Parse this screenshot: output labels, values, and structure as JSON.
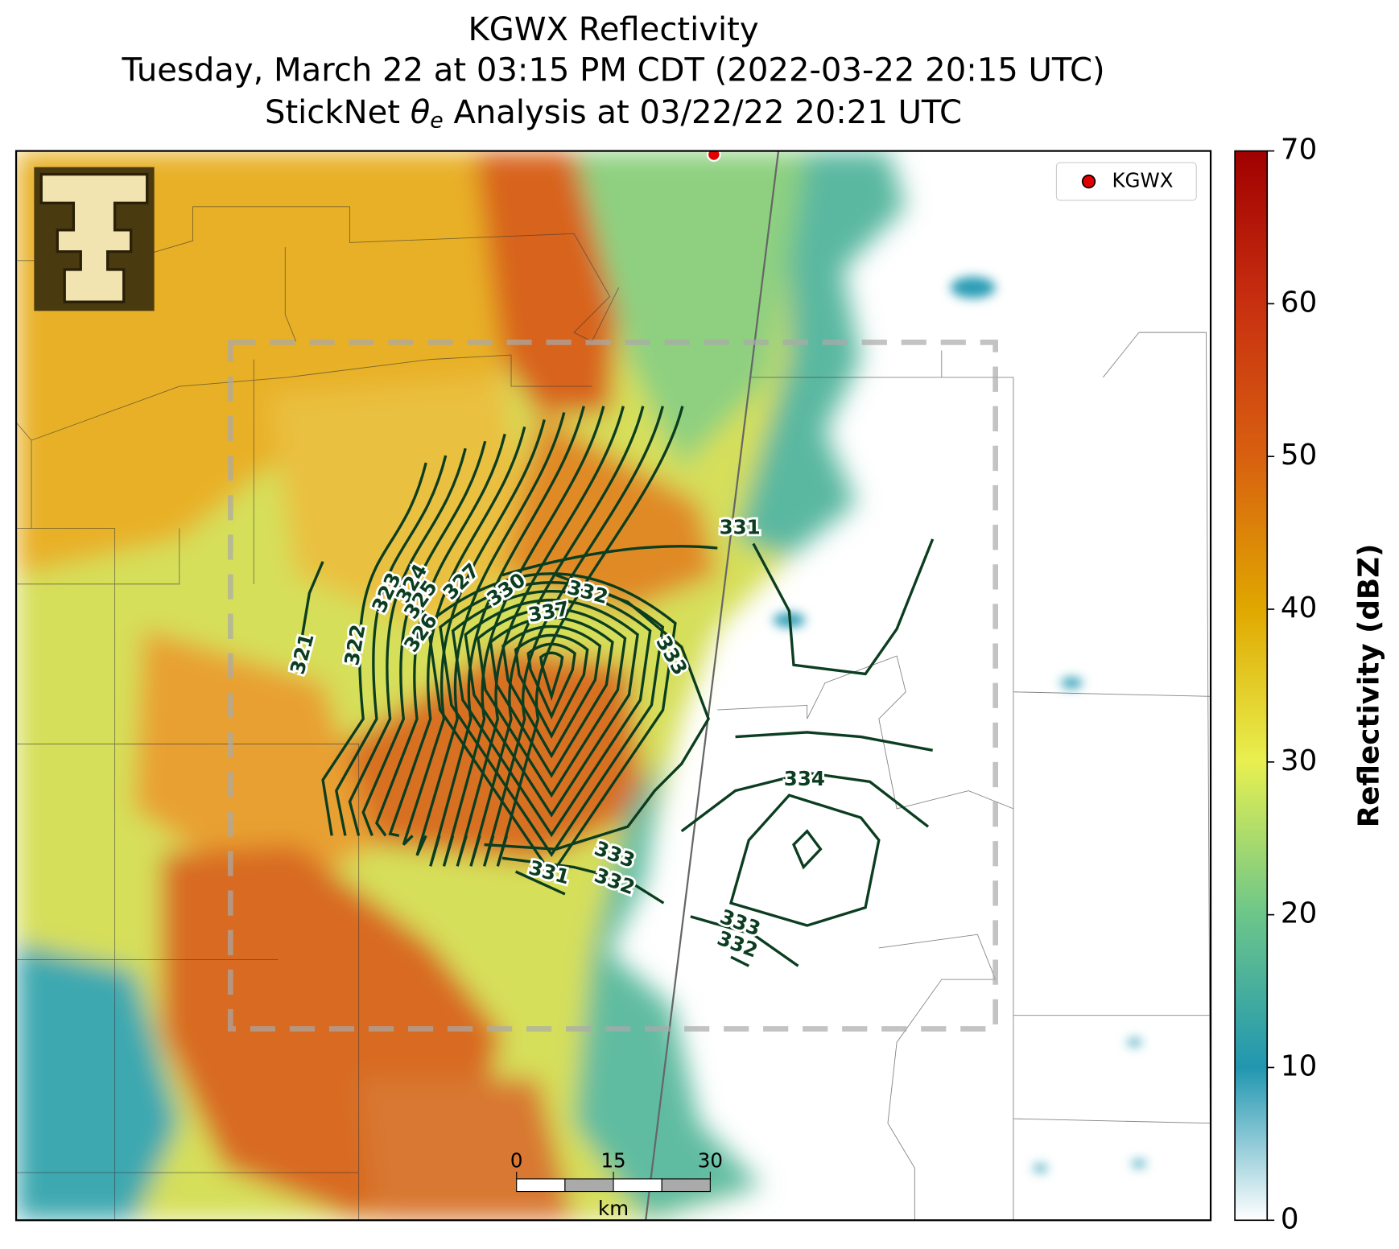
{
  "title_lines": [
    "KGWX Reflectivity",
    "Tuesday, March 22 at 03:15 PM CDT (2022-03-22 20:15 UTC)"
  ],
  "analysis_title": {
    "prefix": "StickNet",
    "symbol": "θ",
    "subscript": "e",
    "suffix": "Analysis at 03/22/22 20:21 UTC"
  },
  "legend": {
    "label": "KGWX",
    "color": "#e00000"
  },
  "colorbar": {
    "label": "Reflectivity (dBZ)",
    "ylim": [
      0,
      70
    ],
    "yticks": [
      0,
      10,
      20,
      30,
      40,
      50,
      60,
      70
    ]
  },
  "scale_bar": {
    "ticks": [
      0,
      15,
      30
    ],
    "unit": "km"
  },
  "contour_labels": [
    321,
    322,
    323,
    324,
    325,
    326,
    327,
    330,
    332,
    337,
    333,
    331,
    334,
    333,
    332,
    331,
    333,
    332
  ]
}
